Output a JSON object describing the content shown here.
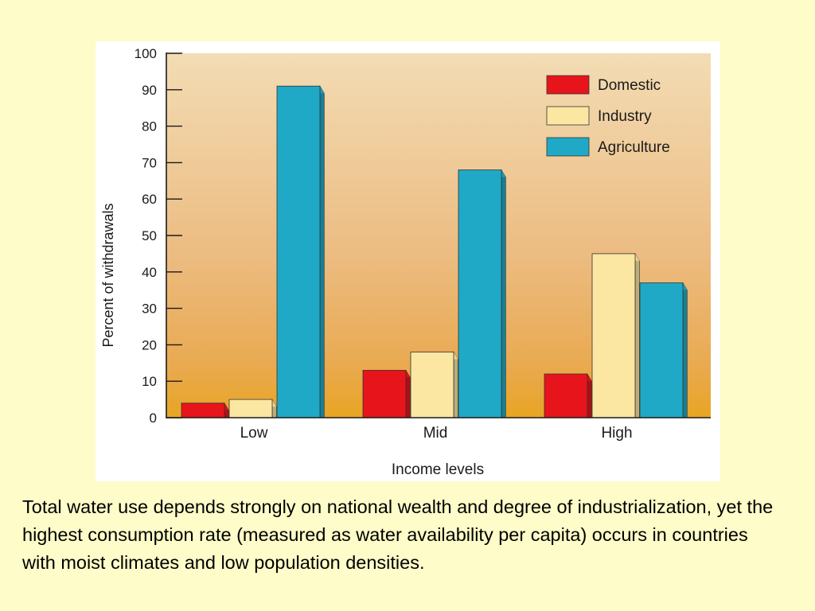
{
  "chart_data": {
    "type": "bar",
    "title": "",
    "xlabel": "Income levels",
    "ylabel": "Percent of withdrawals",
    "ylim": [
      0,
      100
    ],
    "yticks": [
      0,
      10,
      20,
      30,
      40,
      50,
      60,
      70,
      80,
      90,
      100
    ],
    "categories": [
      "Low",
      "Mid",
      "High"
    ],
    "series": [
      {
        "name": "Domestic",
        "color": "#e8141b",
        "values": [
          4,
          13,
          12
        ]
      },
      {
        "name": "Industry",
        "color": "#fbe7a1",
        "values": [
          5,
          18,
          45
        ]
      },
      {
        "name": "Agriculture",
        "color": "#1fa9c6",
        "values": [
          91,
          68,
          37
        ]
      }
    ],
    "legend_position": "top-right",
    "grid": false,
    "plot_background": "gradient: light beige (top) to orange (bottom)"
  },
  "caption": "Total water use depends strongly on national wealth and degree of industrialization, yet the highest consumption rate (measured as water availability per capita) occurs in countries with moist climates and low population densities."
}
